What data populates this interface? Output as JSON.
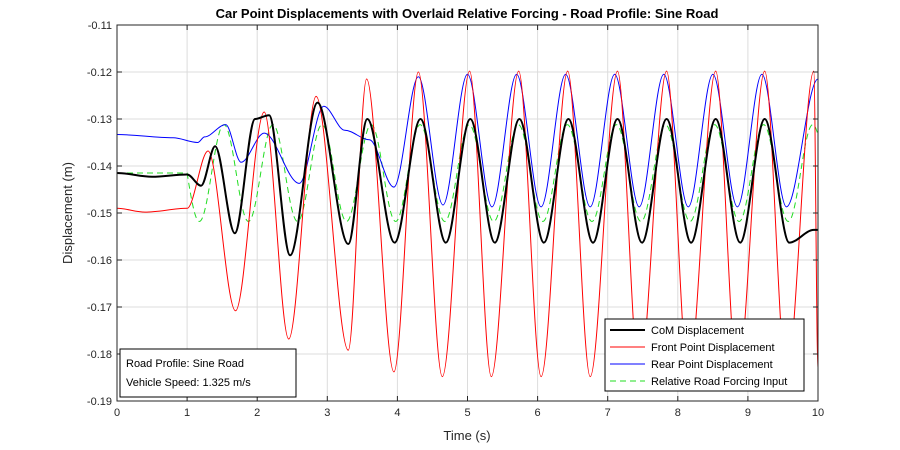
{
  "chart_data": {
    "type": "line",
    "title": "Car Point Displacements with Overlaid Relative Forcing - Road Profile: Sine Road",
    "xlabel": "Time (s)",
    "ylabel": "Displacement (m)",
    "xlim": [
      0,
      10
    ],
    "ylim": [
      -0.19,
      -0.11
    ],
    "y_reversed": true,
    "grid": true,
    "xticks": [
      "0",
      "1",
      "2",
      "3",
      "4",
      "5",
      "6",
      "7",
      "8",
      "9",
      "10"
    ],
    "yticks": [
      "-0.11",
      "-0.12",
      "-0.13",
      "-0.14",
      "-0.15",
      "-0.16",
      "-0.17",
      "-0.18",
      "-0.19"
    ],
    "legend_position": "bottom-right",
    "annotation": {
      "lines": [
        "Road Profile: Sine Road",
        "Vehicle Speed: 1.325 m/s"
      ],
      "position": "bottom-left"
    },
    "series": [
      {
        "name": "CoM Displacement",
        "color": "#000000",
        "style": "solid",
        "x": [
          0,
          0.5,
          1.0,
          1.2,
          1.4,
          1.68,
          1.97,
          2.17,
          2.47,
          2.86,
          3.3,
          3.57,
          3.96,
          4.33,
          4.69,
          5.04,
          5.39,
          5.74,
          6.09,
          6.44,
          6.79,
          7.14,
          7.49,
          7.84,
          8.19,
          8.54,
          8.89,
          9.24,
          9.59,
          9.94,
          10
        ],
        "values": [
          -0.1415,
          -0.1423,
          -0.1418,
          -0.1442,
          -0.1358,
          -0.1543,
          -0.13,
          -0.1292,
          -0.159,
          -0.1265,
          -0.1566,
          -0.13,
          -0.1563,
          -0.13,
          -0.1563,
          -0.13,
          -0.1563,
          -0.13,
          -0.1563,
          -0.13,
          -0.1563,
          -0.13,
          -0.1563,
          -0.13,
          -0.1563,
          -0.13,
          -0.1563,
          -0.13,
          -0.1563,
          -0.1536,
          -0.1536
        ]
      },
      {
        "name": "Front Point Displacement",
        "color": "#ff0000",
        "style": "solid",
        "x": [
          0,
          0.4,
          1.0,
          1.3,
          1.69,
          2.1,
          2.45,
          2.84,
          3.3,
          3.56,
          3.95,
          4.3,
          4.64,
          5.03,
          5.34,
          5.73,
          6.05,
          6.43,
          6.75,
          7.14,
          7.45,
          7.84,
          8.15,
          8.54,
          8.85,
          9.24,
          9.55,
          9.94,
          10
        ],
        "values": [
          -0.149,
          -0.1498,
          -0.149,
          -0.1368,
          -0.1708,
          -0.1285,
          -0.1768,
          -0.1252,
          -0.1792,
          -0.1215,
          -0.1838,
          -0.12,
          -0.1848,
          -0.1198,
          -0.1848,
          -0.1198,
          -0.1848,
          -0.1198,
          -0.1848,
          -0.1198,
          -0.1848,
          -0.1198,
          -0.1848,
          -0.1198,
          -0.1848,
          -0.1198,
          -0.1848,
          -0.1198,
          -0.1835
        ]
      },
      {
        "name": "Rear Point Displacement",
        "color": "#0000ff",
        "style": "solid",
        "x": [
          0,
          0.8,
          1.15,
          1.25,
          1.55,
          1.77,
          2.1,
          2.6,
          2.95,
          3.25,
          3.6,
          3.95,
          4.3,
          4.65,
          5.0,
          5.35,
          5.7,
          6.05,
          6.4,
          6.75,
          7.1,
          7.45,
          7.8,
          8.15,
          8.5,
          8.85,
          9.2,
          9.55,
          10
        ],
        "values": [
          -0.1333,
          -0.134,
          -0.135,
          -0.1338,
          -0.1312,
          -0.1392,
          -0.133,
          -0.1437,
          -0.1273,
          -0.1324,
          -0.1344,
          -0.1445,
          -0.121,
          -0.1483,
          -0.1205,
          -0.1487,
          -0.1205,
          -0.1487,
          -0.1205,
          -0.1487,
          -0.1205,
          -0.1487,
          -0.1205,
          -0.1487,
          -0.1205,
          -0.1487,
          -0.1205,
          -0.1487,
          -0.1215
        ]
      },
      {
        "name": "Relative Road Forcing Input",
        "color": "#22dd22",
        "style": "dashed",
        "x": [
          0,
          0.9,
          1.0,
          1.02
        ],
        "values": [
          -0.1415,
          -0.1415,
          -0.1415,
          -0.1415
        ],
        "sine": {
          "x_start": 1.0,
          "period": 0.7,
          "center": -0.1415,
          "amplitude": 0.0103
        }
      }
    ]
  }
}
